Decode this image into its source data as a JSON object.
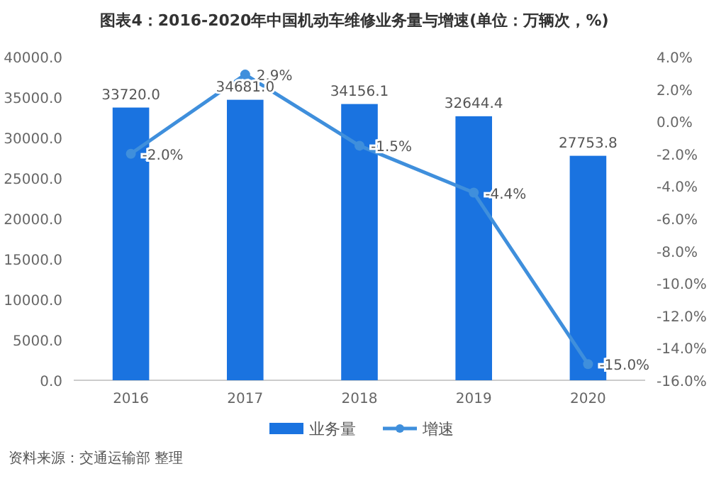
{
  "chart_data": {
    "type": "bar",
    "title": "图表4：2016-2020年中国机动车维修业务量与增速(单位：万辆次，%)",
    "categories": [
      "2016",
      "2017",
      "2018",
      "2019",
      "2020"
    ],
    "series": [
      {
        "name": "业务量",
        "color": "#1a73e0",
        "values": [
          33720.0,
          34681.0,
          34156.1,
          32644.4,
          27753.8
        ],
        "value_labels": [
          "33720.0",
          "34681.0",
          "34156.1",
          "32644.4",
          "27753.8"
        ]
      },
      {
        "name": "增速",
        "type": "line",
        "axis": "y2",
        "color": "#3f8fdc",
        "values": [
          -2.0,
          2.9,
          -1.5,
          -4.4,
          -15.0
        ],
        "value_labels": [
          "-2.0%",
          "2.9%",
          "-1.5%",
          "-4.4%",
          "-15.0%"
        ]
      }
    ],
    "ylim": [
      0,
      40000
    ],
    "yticks": [
      {
        "value": 0,
        "label": "0.0"
      },
      {
        "value": 5000,
        "label": "5000.0"
      },
      {
        "value": 10000,
        "label": "10000.0"
      },
      {
        "value": 15000,
        "label": "15000.0"
      },
      {
        "value": 20000,
        "label": "20000.0"
      },
      {
        "value": 25000,
        "label": "25000.0"
      },
      {
        "value": 30000,
        "label": "30000.0"
      },
      {
        "value": 35000,
        "label": "35000.0"
      },
      {
        "value": 40000,
        "label": "40000.0"
      }
    ],
    "y2lim": [
      -16,
      4
    ],
    "y2ticks": [
      {
        "value": -16,
        "label": "-16.0%"
      },
      {
        "value": -14,
        "label": "-14.0%"
      },
      {
        "value": -12,
        "label": "-12.0%"
      },
      {
        "value": -10,
        "label": "-10.0%"
      },
      {
        "value": -8,
        "label": "-8.0%"
      },
      {
        "value": -6,
        "label": "-6.0%"
      },
      {
        "value": -4,
        "label": "-4.0%"
      },
      {
        "value": -2,
        "label": "-2.0%"
      },
      {
        "value": 0,
        "label": "0.0%"
      },
      {
        "value": 2,
        "label": "2.0%"
      },
      {
        "value": 4,
        "label": "4.0%"
      }
    ],
    "legend": "bottom",
    "marker": "circle",
    "grid": false,
    "annotations": [
      "资料来源：交通运输部 整理"
    ]
  }
}
